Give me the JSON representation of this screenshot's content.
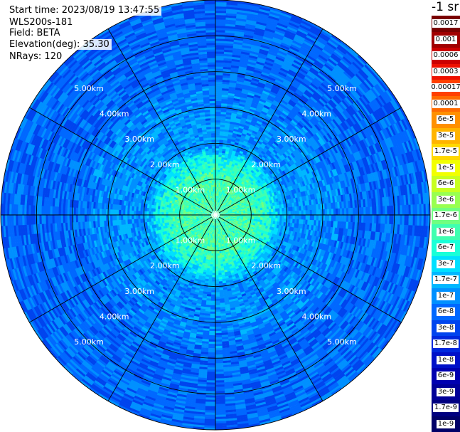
{
  "info": {
    "start_time": "Start time: 2023/08/19 13:47:55",
    "instrument": "WLS200s-181",
    "field": "Field: BETA",
    "elevation": "Elevation(deg): 35.30",
    "nrays": "NRays: 120"
  },
  "colorbar": {
    "title": "-1 sr",
    "labels": [
      "0.0017",
      "0.001",
      "0.0006",
      "0.0003",
      "0.00017",
      "0.0001",
      "6e-5",
      "3e-5",
      "1.7e-5",
      "1e-5",
      "6e-6",
      "3e-6",
      "1.7e-6",
      "1e-6",
      "6e-7",
      "3e-7",
      "1.7e-7",
      "1e-7",
      "6e-8",
      "3e-8",
      "1.7e-8",
      "1e-8",
      "6e-9",
      "3e-9",
      "1.7e-9",
      "1e-9"
    ],
    "colors": [
      "#7a0000",
      "#a00000",
      "#cc0000",
      "#ee1000",
      "#ff4000",
      "#ff6a00",
      "#ff9000",
      "#ffb400",
      "#ffd800",
      "#f2ff00",
      "#c8ff20",
      "#98ff50",
      "#70ff80",
      "#40ffb0",
      "#18ffd8",
      "#00e0ff",
      "#00b8ff",
      "#0090ff",
      "#0068ff",
      "#0044ee",
      "#0028dd",
      "#0010c8",
      "#0000b0",
      "#000098",
      "#000080",
      "#000068"
    ]
  },
  "chart_data": {
    "type": "heatmap",
    "projection": "polar (PPI scan)",
    "field": "BETA",
    "units": "-1 sr",
    "elevation_deg": 35.3,
    "n_rays": 120,
    "range_rings_km": [
      1,
      2,
      3,
      4,
      5
    ],
    "range_labels": [
      "1.00km",
      "2.00km",
      "3.00km",
      "4.00km",
      "5.00km"
    ],
    "spokes_deg": [
      0,
      30,
      60,
      90,
      120,
      150,
      180,
      210,
      240,
      270,
      300,
      330
    ],
    "max_range_km": 6,
    "value_by_range": [
      {
        "range_km": 0.5,
        "beta": "1e-6"
      },
      {
        "range_km": 1.0,
        "beta": "1e-6"
      },
      {
        "range_km": 1.5,
        "beta": "6e-7"
      },
      {
        "range_km": 2.0,
        "beta": "1e-7"
      },
      {
        "range_km": 3.0,
        "beta": "1e-7"
      },
      {
        "range_km": 4.0,
        "beta": "6e-8"
      },
      {
        "range_km": 5.0,
        "beta": "6e-8"
      },
      {
        "range_km": 6.0,
        "beta": "6e-8"
      }
    ]
  }
}
